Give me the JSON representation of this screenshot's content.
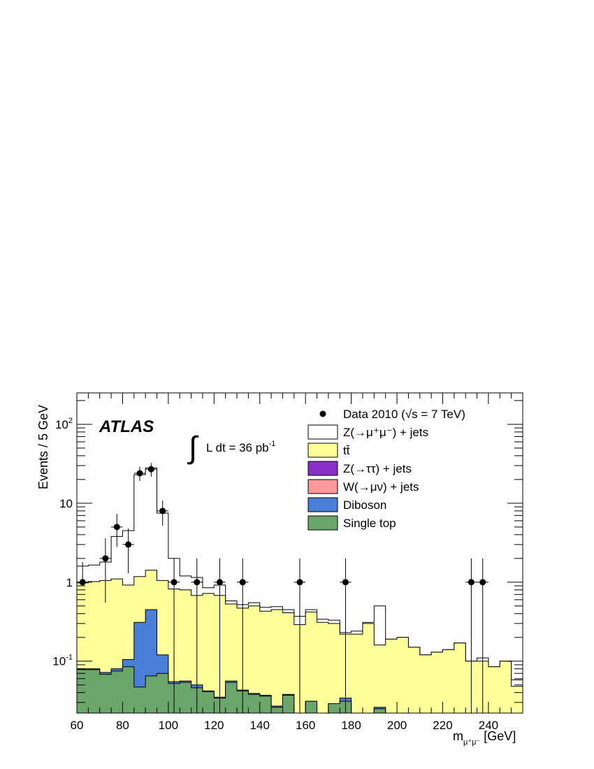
{
  "chart_data": {
    "type": "bar",
    "stacked": true,
    "y_scale": "log",
    "bin_width": 5,
    "x_range": [
      60,
      255
    ],
    "y_range": [
      0.022,
      250
    ],
    "x_ticks": [
      60,
      80,
      100,
      120,
      140,
      160,
      180,
      200,
      220,
      240
    ],
    "y_ticks": [
      {
        "value": 0.1,
        "base": "10",
        "exp": "-1"
      },
      {
        "value": 1,
        "base": "1",
        "exp": ""
      },
      {
        "value": 10,
        "base": "10",
        "exp": ""
      },
      {
        "value": 100,
        "base": "10",
        "exp": "2"
      }
    ],
    "ylabel": "Events / 5 GeV",
    "xlabel": {
      "main": "m",
      "sub": "μ⁺μ⁻",
      "unit": " [GeV]"
    },
    "atlas_label": "ATLAS",
    "lumi": {
      "symbol": "∫",
      "text": "L dt = 36 pb",
      "sup": "-1"
    },
    "legend_position": "top-right",
    "legend": [
      {
        "key": "data",
        "label": "Data 2010 (√s = 7 TeV)",
        "style": "marker"
      },
      {
        "key": "zmumu",
        "label": "Z(→μ⁺μ⁻) + jets",
        "color": "#ffffff",
        "style": "box"
      },
      {
        "key": "ttbar",
        "label": "tt̄",
        "color": "#ffff99",
        "style": "box"
      },
      {
        "key": "ztautau",
        "label": "Z(→ττ) + jets",
        "color": "#8b2fc9",
        "style": "box"
      },
      {
        "key": "wmunu",
        "label": "W(→μν) + jets",
        "color": "#ff9999",
        "style": "box"
      },
      {
        "key": "diboson",
        "label": "Diboson",
        "color": "#4a7fd9",
        "style": "box"
      },
      {
        "key": "singletop",
        "label": "Single top",
        "color": "#6aa66a",
        "style": "box"
      }
    ],
    "bins_low_edge": [
      60,
      65,
      70,
      75,
      80,
      85,
      90,
      95,
      100,
      105,
      110,
      115,
      120,
      125,
      130,
      135,
      140,
      145,
      150,
      155,
      160,
      165,
      170,
      175,
      180,
      185,
      190,
      195,
      200,
      205,
      210,
      215,
      220,
      225,
      230,
      235,
      240,
      245,
      250
    ],
    "stack_tops": {
      "singletop": [
        0.078,
        0.078,
        0.068,
        0.075,
        0.085,
        0.047,
        0.065,
        0.07,
        0.052,
        0.054,
        0.046,
        0.041,
        0.034,
        0.054,
        0.042,
        0.038,
        0.036,
        0.026,
        0.037,
        0.022,
        0.031,
        0.022,
        0.029,
        0.031,
        0.022,
        0.022,
        0.025,
        0.022,
        0.022,
        0.022,
        0.022,
        0.022,
        0.022,
        0.022,
        0.022,
        0.022,
        0.022,
        0.022,
        0.022
      ],
      "diboson": [
        0.08,
        0.08,
        0.072,
        0.08,
        0.105,
        0.31,
        0.45,
        0.12,
        0.055,
        0.056,
        0.05,
        0.042,
        0.035,
        0.056,
        0.043,
        0.039,
        0.037,
        0.027,
        0.038,
        0.022,
        0.031,
        0.022,
        0.029,
        0.034,
        0.022,
        0.022,
        0.026,
        0.022,
        0.022,
        0.022,
        0.022,
        0.022,
        0.022,
        0.022,
        0.022,
        0.022,
        0.022,
        0.022,
        0.022
      ],
      "ttbar": [
        0.98,
        1.02,
        1.05,
        1.1,
        0.92,
        1.18,
        1.42,
        1.05,
        0.82,
        0.8,
        0.68,
        0.72,
        0.68,
        0.53,
        0.47,
        0.5,
        0.43,
        0.45,
        0.41,
        0.29,
        0.42,
        0.31,
        0.3,
        0.22,
        0.22,
        0.3,
        0.16,
        0.19,
        0.2,
        0.15,
        0.12,
        0.13,
        0.14,
        0.17,
        0.1,
        0.1,
        0.085,
        0.1,
        0.048
      ],
      "zmumu": [
        1.6,
        1.65,
        1.8,
        3.8,
        4.5,
        23,
        28,
        7.5,
        2.0,
        1.2,
        1.15,
        0.85,
        0.92,
        0.58,
        0.52,
        0.55,
        0.48,
        0.49,
        0.45,
        0.37,
        0.45,
        0.34,
        0.33,
        0.23,
        0.24,
        0.31,
        0.5,
        0.19,
        0.2,
        0.15,
        0.12,
        0.13,
        0.14,
        0.17,
        0.1,
        0.11,
        0.085,
        0.1,
        0.058
      ]
    },
    "data_points": [
      {
        "x": 62.5,
        "y": 1,
        "err_low": 0.0,
        "err_high": 0.8
      },
      {
        "x": 72.5,
        "y": 2,
        "err_low": 1.45,
        "err_high": 1.6
      },
      {
        "x": 77.5,
        "y": 5,
        "err_low": 2.2,
        "err_high": 2.3
      },
      {
        "x": 82.5,
        "y": 3,
        "err_low": 1.7,
        "err_high": 1.8
      },
      {
        "x": 87.5,
        "y": 24,
        "err_low": 4.9,
        "err_high": 5.0
      },
      {
        "x": 92.5,
        "y": 27,
        "err_low": 5.2,
        "err_high": 5.3
      },
      {
        "x": 97.5,
        "y": 8,
        "err_low": 2.8,
        "err_high": 2.9
      },
      {
        "x": 102.5,
        "y": 1,
        "err_low": 0.98,
        "err_high": 1.0
      },
      {
        "x": 112.5,
        "y": 1,
        "err_low": 0.98,
        "err_high": 1.0
      },
      {
        "x": 122.5,
        "y": 1,
        "err_low": 0.98,
        "err_high": 1.0
      },
      {
        "x": 132.5,
        "y": 1,
        "err_low": 0.98,
        "err_high": 1.0
      },
      {
        "x": 157.5,
        "y": 1,
        "err_low": 0.98,
        "err_high": 1.0
      },
      {
        "x": 177.5,
        "y": 1,
        "err_low": 0.98,
        "err_high": 1.0
      },
      {
        "x": 232.5,
        "y": 1,
        "err_low": 0.98,
        "err_high": 1.0
      },
      {
        "x": 237.5,
        "y": 1,
        "err_low": 0.98,
        "err_high": 1.0
      }
    ]
  }
}
